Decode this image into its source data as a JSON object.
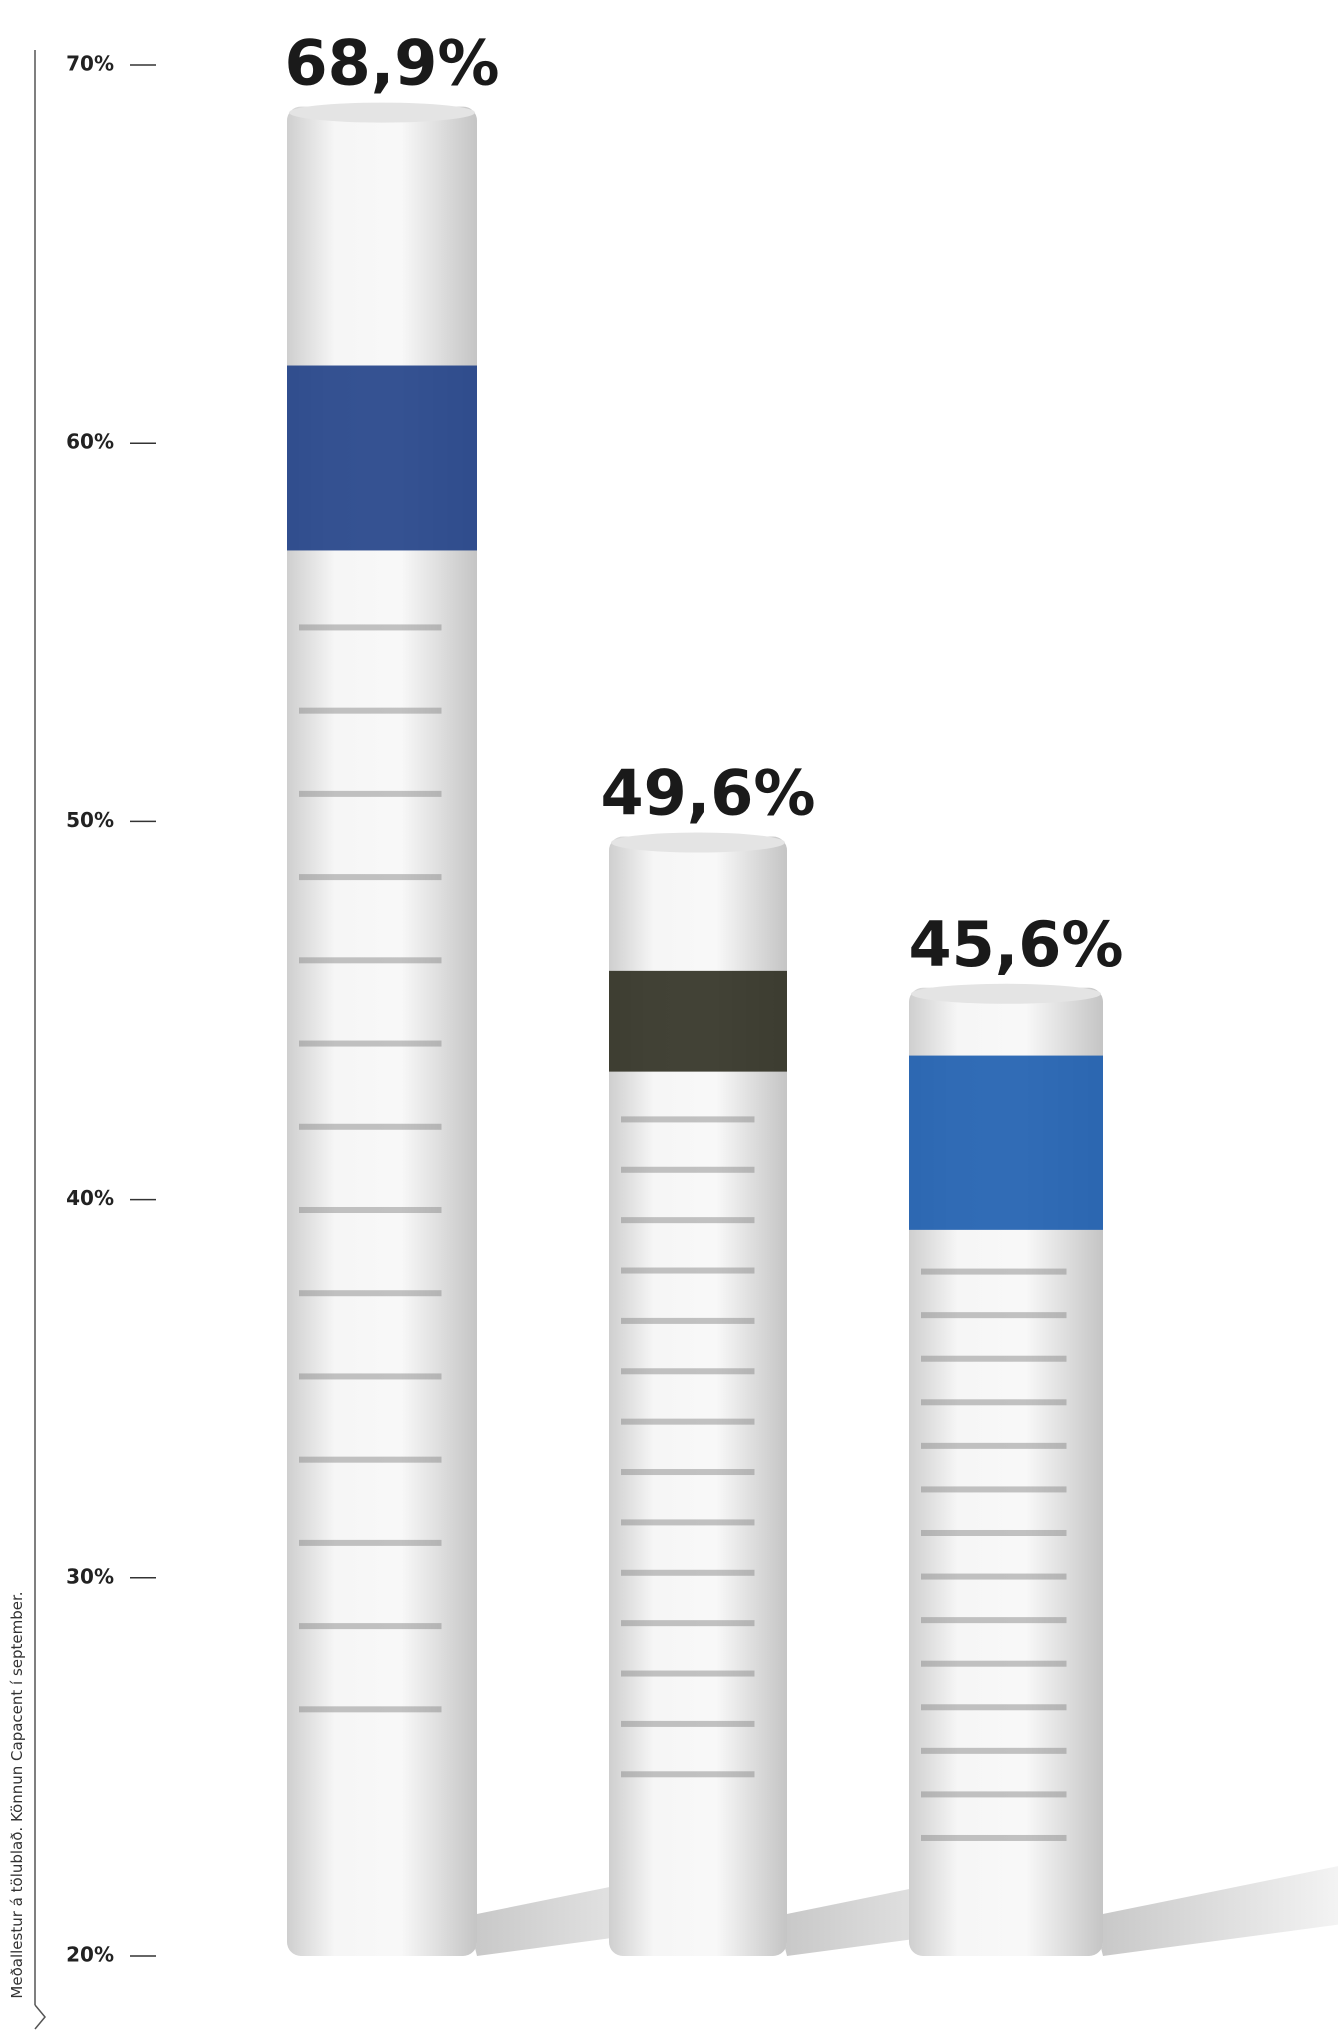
{
  "chart_data": {
    "type": "bar",
    "note": "Meðallestur á tölublað. Könnun Capacent í september.",
    "values": [
      68.9,
      49.6,
      45.6
    ],
    "value_labels": [
      "68,9%",
      "49,6%",
      "45,6%"
    ],
    "color": "#efefef",
    "ylim": [
      20,
      70
    ],
    "yticks": [
      {
        "value": 20,
        "label": "20%"
      },
      {
        "value": 30,
        "label": "30%"
      },
      {
        "value": 40,
        "label": "40%"
      },
      {
        "value": 50,
        "label": "50%"
      },
      {
        "value": 60,
        "label": "60%"
      },
      {
        "value": 70,
        "label": "70%"
      }
    ]
  }
}
